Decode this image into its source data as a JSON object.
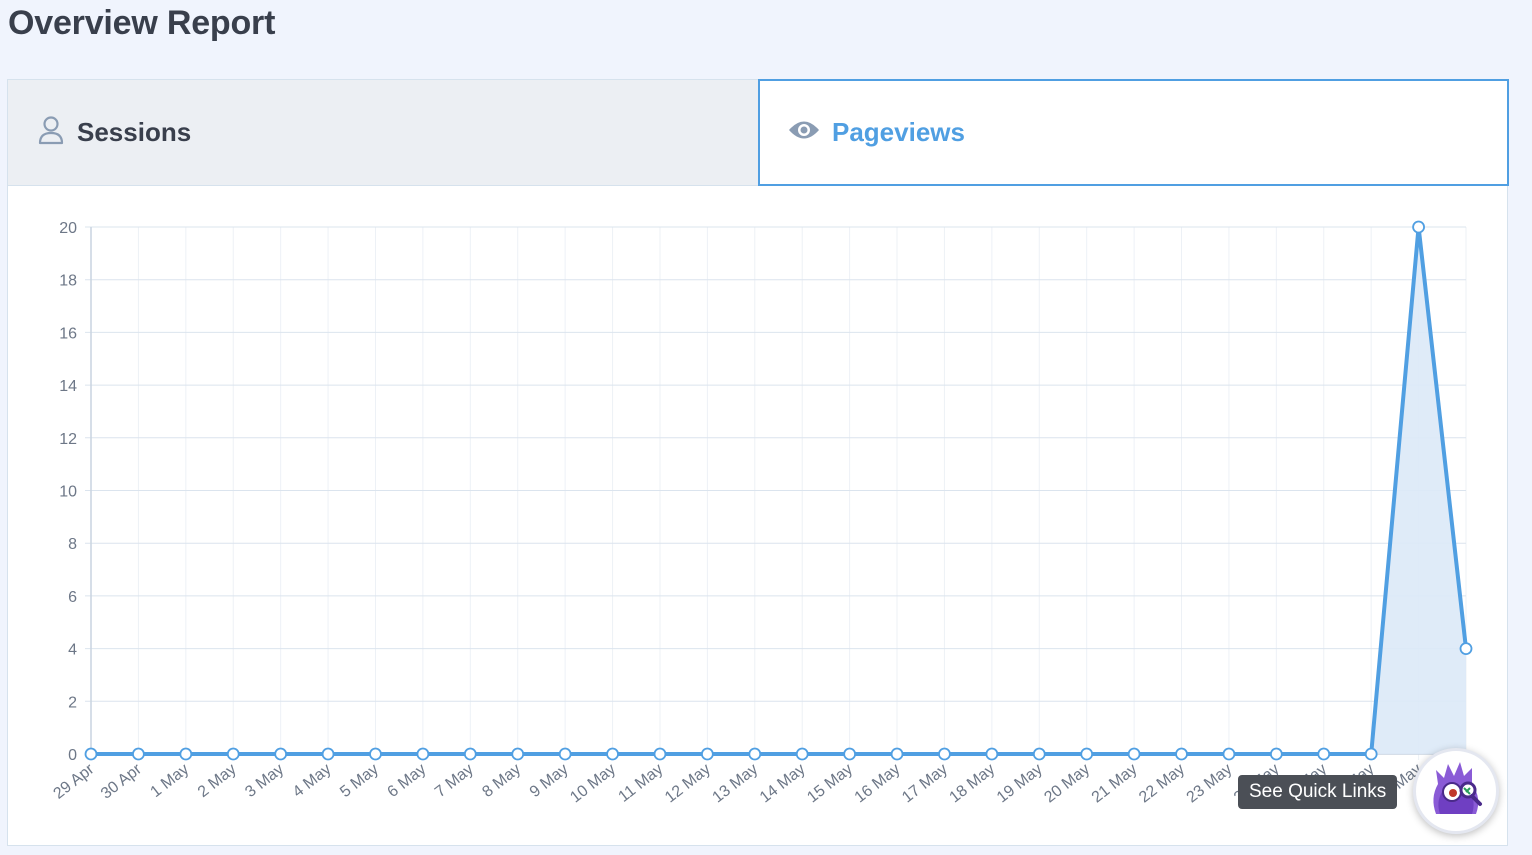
{
  "page": {
    "title": "Overview Report"
  },
  "tabs": [
    {
      "label": "Sessions",
      "icon": "user-icon",
      "active": false
    },
    {
      "label": "Pageviews",
      "icon": "eye-icon",
      "active": true
    }
  ],
  "quick_links": {
    "label": "See Quick Links",
    "icon": "monster-mascot-icon"
  },
  "colors": {
    "accent": "#509fe2",
    "fill": "#dce9f7",
    "grid": "#dbe4ee"
  },
  "chart_data": {
    "type": "area",
    "x": [
      "29 Apr",
      "30 Apr",
      "1 May",
      "2 May",
      "3 May",
      "4 May",
      "5 May",
      "6 May",
      "7 May",
      "8 May",
      "9 May",
      "10 May",
      "11 May",
      "12 May",
      "13 May",
      "14 May",
      "15 May",
      "16 May",
      "17 May",
      "18 May",
      "19 May",
      "20 May",
      "21 May",
      "22 May",
      "23 May",
      "24 May",
      "25 May",
      "26 May",
      "27 May",
      "28 May"
    ],
    "series": [
      {
        "values": [
          0,
          0,
          0,
          0,
          0,
          0,
          0,
          0,
          0,
          0,
          0,
          0,
          0,
          0,
          0,
          0,
          0,
          0,
          0,
          0,
          0,
          0,
          0,
          0,
          0,
          0,
          0,
          0,
          20,
          4
        ]
      }
    ],
    "yticks": [
      "0",
      "2",
      "4",
      "6",
      "8",
      "10",
      "12",
      "14",
      "16",
      "18",
      "20"
    ],
    "ylim": [
      0,
      20
    ],
    "grid": true
  }
}
